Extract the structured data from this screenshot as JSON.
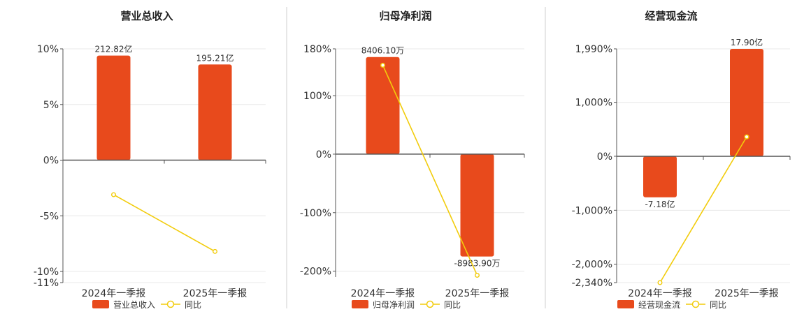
{
  "colors": {
    "bar": "#e84a1c",
    "line": "#f2cc0c",
    "grid": "#e8e8e8",
    "axis": "#555555",
    "divider": "#cfcfcf"
  },
  "legend_line_label": "同比",
  "chart_data": [
    {
      "type": "bar",
      "title": "营业总收入",
      "categories": [
        "2024年一季报",
        "2025年一季报"
      ],
      "ticks": [
        {
          "v": 10,
          "label": "10%"
        },
        {
          "v": 5,
          "label": "5%"
        },
        {
          "v": 0,
          "label": "0%"
        },
        {
          "v": -5,
          "label": "-5%"
        },
        {
          "v": -10,
          "label": "-10%"
        },
        {
          "v": -11,
          "label": "-11%"
        }
      ],
      "ylim": [
        -11,
        10
      ],
      "series": [
        {
          "name": "营业总收入",
          "kind": "bar",
          "values": [
            9.4,
            8.6
          ],
          "labels": [
            "212.82亿",
            "195.21亿"
          ]
        },
        {
          "name": "同比",
          "kind": "line",
          "values": [
            -3.1,
            -8.2
          ]
        }
      ]
    },
    {
      "type": "bar",
      "title": "归母净利润",
      "categories": [
        "2024年一季报",
        "2025年一季报"
      ],
      "ticks": [
        {
          "v": 180,
          "label": "180%"
        },
        {
          "v": 100,
          "label": "100%"
        },
        {
          "v": 0,
          "label": "0%"
        },
        {
          "v": -100,
          "label": "-100%"
        },
        {
          "v": -200,
          "label": "-200%"
        }
      ],
      "ylim": [
        -210,
        180
      ],
      "series": [
        {
          "name": "归母净利润",
          "kind": "bar",
          "values": [
            166,
            -175
          ],
          "labels": [
            "8406.10万",
            "-8983.90万"
          ]
        },
        {
          "name": "同比",
          "kind": "line",
          "values": [
            152,
            -207
          ]
        }
      ]
    },
    {
      "type": "bar",
      "title": "经营现金流",
      "categories": [
        "2024年一季报",
        "2025年一季报"
      ],
      "ticks": [
        {
          "v": 1990,
          "label": "1,990%"
        },
        {
          "v": 1000,
          "label": "1,000%"
        },
        {
          "v": 0,
          "label": "0%"
        },
        {
          "v": -1000,
          "label": "-1,000%"
        },
        {
          "v": -2000,
          "label": "-2,000%"
        },
        {
          "v": -2340,
          "label": "-2,340%"
        }
      ],
      "ylim": [
        -2340,
        1990
      ],
      "series": [
        {
          "name": "经营现金流",
          "kind": "bar",
          "values": [
            -760,
            1990
          ],
          "labels": [
            "-7.18亿",
            "17.90亿"
          ]
        },
        {
          "name": "同比",
          "kind": "line",
          "values": [
            -2340,
            360
          ]
        }
      ]
    }
  ]
}
